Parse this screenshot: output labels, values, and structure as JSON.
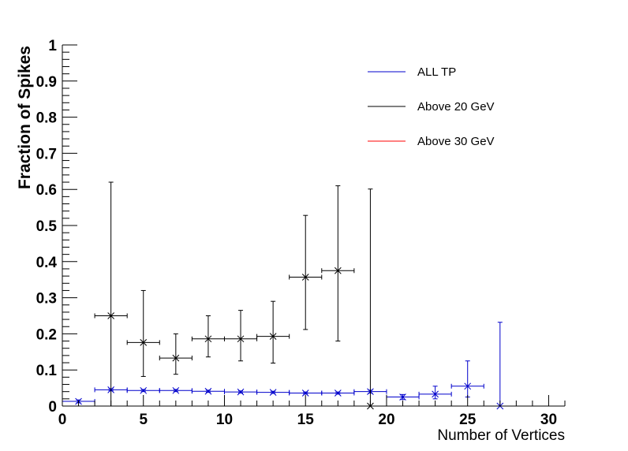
{
  "chart_data": {
    "type": "scatter",
    "xlabel": "Number of Vertices",
    "ylabel": "Fraction of Spikes",
    "xlim": [
      0,
      31
    ],
    "ylim": [
      0,
      1
    ],
    "x_ticks": [
      "0",
      "5",
      "10",
      "15",
      "20",
      "25",
      "30"
    ],
    "y_ticks": [
      "0",
      "0.1",
      "0.2",
      "0.3",
      "0.4",
      "0.5",
      "0.6",
      "0.7",
      "0.8",
      "0.9",
      "1"
    ],
    "legend_position": "top-right",
    "grid": false,
    "series": [
      {
        "name": "ALL TP",
        "color": "#0000cc",
        "points": [
          {
            "x": 1,
            "xerr": 1,
            "y": 0.013,
            "elow": 0.004,
            "ehigh": 0.004
          },
          {
            "x": 3,
            "xerr": 1,
            "y": 0.045,
            "elow": 0.003,
            "ehigh": 0.003
          },
          {
            "x": 5,
            "xerr": 1,
            "y": 0.043,
            "elow": 0.003,
            "ehigh": 0.003
          },
          {
            "x": 7,
            "xerr": 1,
            "y": 0.043,
            "elow": 0.003,
            "ehigh": 0.003
          },
          {
            "x": 9,
            "xerr": 1,
            "y": 0.041,
            "elow": 0.003,
            "ehigh": 0.003
          },
          {
            "x": 11,
            "xerr": 1,
            "y": 0.039,
            "elow": 0.003,
            "ehigh": 0.003
          },
          {
            "x": 13,
            "xerr": 1,
            "y": 0.038,
            "elow": 0.003,
            "ehigh": 0.003
          },
          {
            "x": 15,
            "xerr": 1,
            "y": 0.036,
            "elow": 0.003,
            "ehigh": 0.003
          },
          {
            "x": 17,
            "xerr": 1,
            "y": 0.036,
            "elow": 0.003,
            "ehigh": 0.003
          },
          {
            "x": 19,
            "xerr": 1,
            "y": 0.04,
            "elow": 0.004,
            "ehigh": 0.004
          },
          {
            "x": 21,
            "xerr": 1,
            "y": 0.025,
            "elow": 0.007,
            "ehigh": 0.007
          },
          {
            "x": 23,
            "xerr": 1,
            "y": 0.033,
            "elow": 0.013,
            "ehigh": 0.022
          },
          {
            "x": 25,
            "xerr": 1,
            "y": 0.055,
            "elow": 0.03,
            "ehigh": 0.07
          },
          {
            "x": 27,
            "xerr": 0,
            "y": 0.0,
            "elow": 0.0,
            "ehigh": 0.232
          }
        ]
      },
      {
        "name": "Above 20 GeV",
        "color": "#000000",
        "points": [
          {
            "x": 3,
            "xerr": 1,
            "y": 0.25,
            "elow": 0.25,
            "ehigh": 0.37
          },
          {
            "x": 5,
            "xerr": 1,
            "y": 0.176,
            "elow": 0.094,
            "ehigh": 0.144
          },
          {
            "x": 7,
            "xerr": 1,
            "y": 0.133,
            "elow": 0.045,
            "ehigh": 0.067
          },
          {
            "x": 9,
            "xerr": 1,
            "y": 0.186,
            "elow": 0.05,
            "ehigh": 0.064
          },
          {
            "x": 11,
            "xerr": 1,
            "y": 0.186,
            "elow": 0.061,
            "ehigh": 0.079
          },
          {
            "x": 13,
            "xerr": 1,
            "y": 0.193,
            "elow": 0.074,
            "ehigh": 0.097
          },
          {
            "x": 15,
            "xerr": 1,
            "y": 0.357,
            "elow": 0.145,
            "ehigh": 0.171
          },
          {
            "x": 17,
            "xerr": 1,
            "y": 0.375,
            "elow": 0.195,
            "ehigh": 0.235
          },
          {
            "x": 19,
            "xerr": 0,
            "y": 0.0,
            "elow": 0.0,
            "ehigh": 0.601
          }
        ]
      },
      {
        "name": "Above 30 GeV",
        "color": "#ff0000",
        "points": []
      }
    ]
  }
}
